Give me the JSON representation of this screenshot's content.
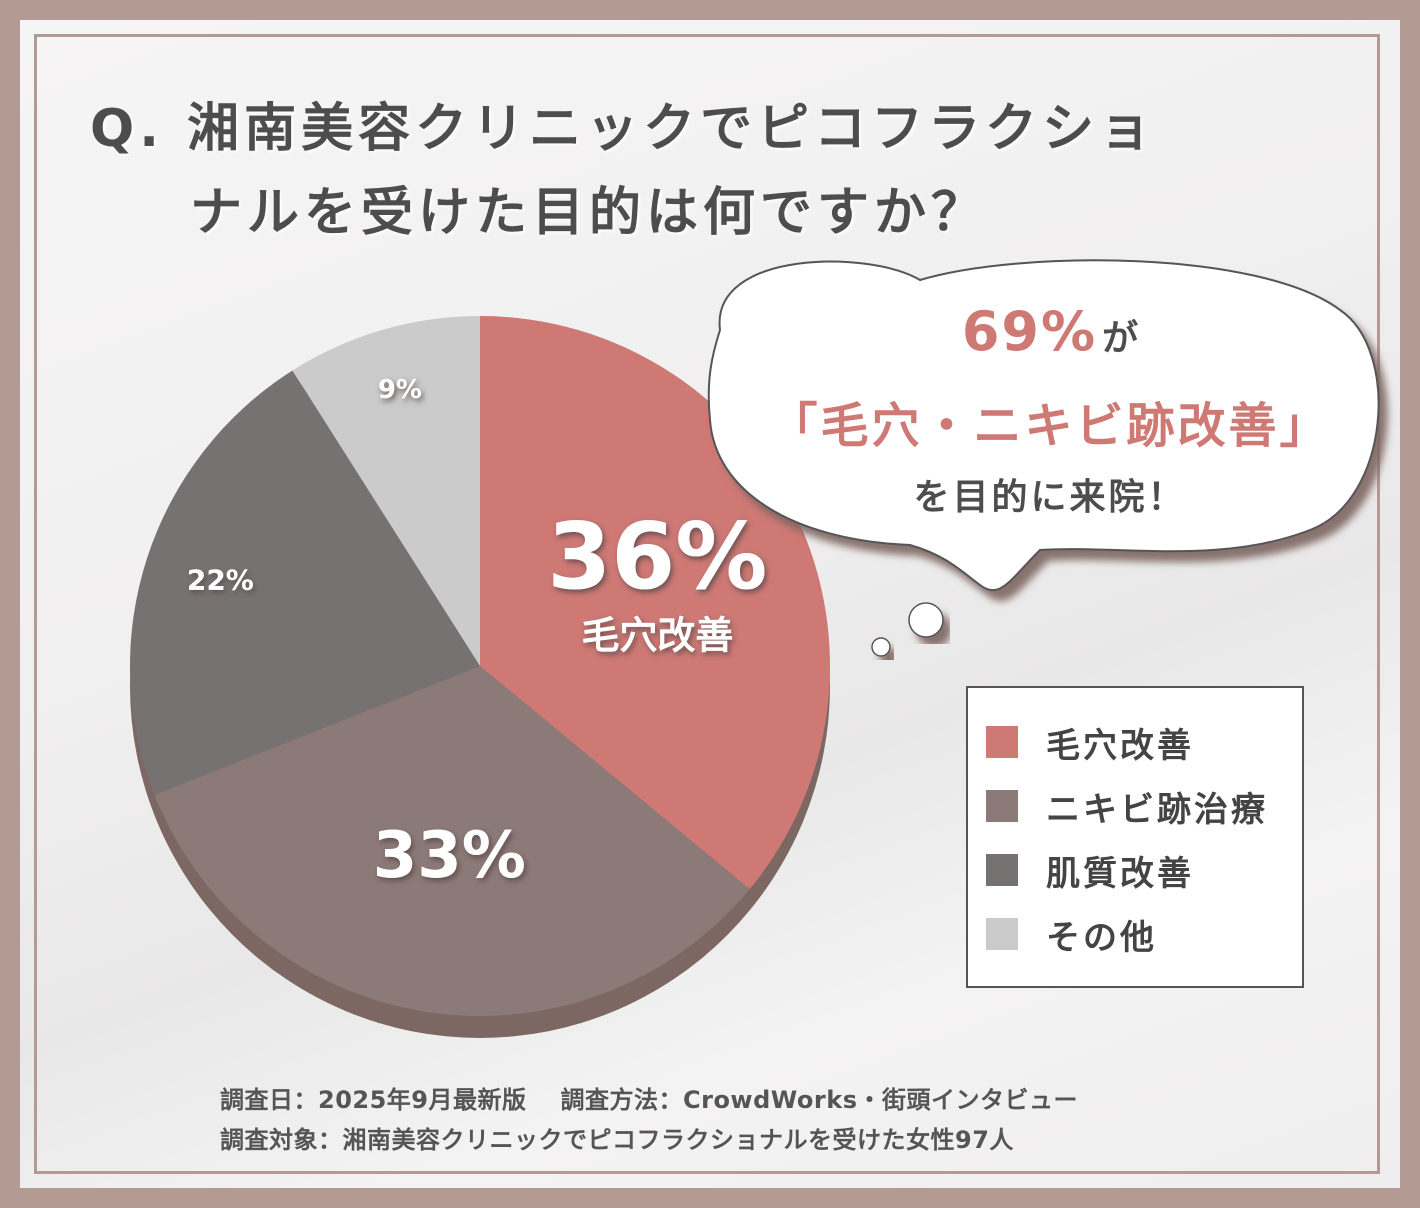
{
  "title": {
    "line1": "Q. 湘南美容クリニックでピコフラクショ",
    "line2": "ナルを受けた目的は何ですか？"
  },
  "callout": {
    "percent": "69%",
    "percent_suffix": "が",
    "highlight": "「毛穴・ニキビ跡改善」",
    "conclusion": "を目的に来院！"
  },
  "chart_data": {
    "type": "pie",
    "title": "Q. 湘南美容クリニックでピコフラクショナルを受けた目的は何ですか？",
    "slices": [
      {
        "label": "毛穴改善",
        "value": 36,
        "value_label": "36%",
        "inline_label": "毛穴改善",
        "color": "#cf7975"
      },
      {
        "label": "ニキビ跡治療",
        "value": 33,
        "value_label": "33%",
        "inline_label": "",
        "color": "#8c7a78"
      },
      {
        "label": "肌質改善",
        "value": 22,
        "value_label": "22%",
        "inline_label": "",
        "color": "#767272"
      },
      {
        "label": "その他",
        "value": 9,
        "value_label": "9%",
        "inline_label": "",
        "color": "#cbcbcb"
      }
    ],
    "legend_placement": "bottom-right"
  },
  "legend": {
    "items": [
      {
        "label": "毛穴改善",
        "color": "#cf7975"
      },
      {
        "label": "ニキビ跡治療",
        "color": "#8c7a78"
      },
      {
        "label": "肌質改善",
        "color": "#767272"
      },
      {
        "label": "その他",
        "color": "#cbcbcb"
      }
    ]
  },
  "footer": {
    "survey_date": "調査日：2025年9月最新版",
    "survey_method": "調査方法：CrowdWorks・街頭インタビュー",
    "survey_target": "調査対象：湘南美容クリニックでピコフラクショナルを受けた女性97人"
  },
  "colors": {
    "background": "#b39a93",
    "accent": "#cf7975",
    "text": "#4d4d4d"
  }
}
